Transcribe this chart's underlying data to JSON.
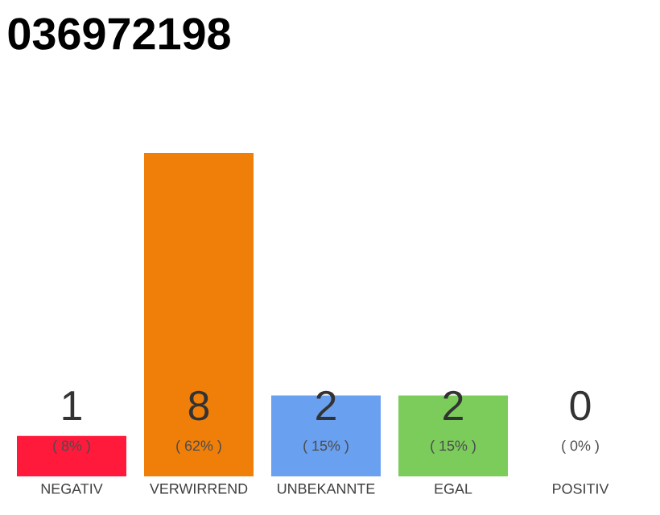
{
  "chart_data": {
    "type": "bar",
    "title": "036972198",
    "categories": [
      "NEGATIV",
      "VERWIRREND",
      "UNBEKANNTE",
      "EGAL",
      "POSITIV"
    ],
    "values": [
      1,
      8,
      2,
      2,
      0
    ],
    "colors": [
      "#ff1a3c",
      "#f07f0a",
      "#6aa0f0",
      "#7ccc5c",
      "#cccccc"
    ],
    "value_labels": [
      "1",
      "8",
      "2",
      "2",
      "0"
    ],
    "annotations": [
      "( 8% )",
      "( 62% )",
      "( 15% )",
      "( 15% )",
      "( 0% )"
    ],
    "ylim": [
      0,
      8
    ],
    "tick_labels": "x"
  }
}
